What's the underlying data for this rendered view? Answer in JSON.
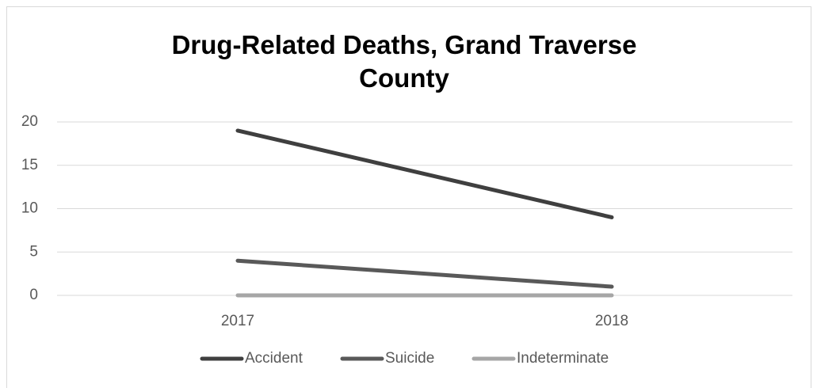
{
  "chart_data": {
    "type": "line",
    "title": "Drug-Related Deaths, Grand Traverse County",
    "categories": [
      "2017",
      "2018"
    ],
    "series": [
      {
        "name": "Accident",
        "color": "#3f3f3f",
        "values": [
          19,
          9
        ]
      },
      {
        "name": "Suicide",
        "color": "#595959",
        "values": [
          4,
          1
        ]
      },
      {
        "name": "Indeterminate",
        "color": "#a6a6a6",
        "values": [
          0,
          0
        ]
      }
    ],
    "ylim": [
      0,
      20
    ],
    "yticks": [
      0,
      5,
      10,
      15,
      20
    ],
    "grid": true,
    "legend": "bottom"
  }
}
